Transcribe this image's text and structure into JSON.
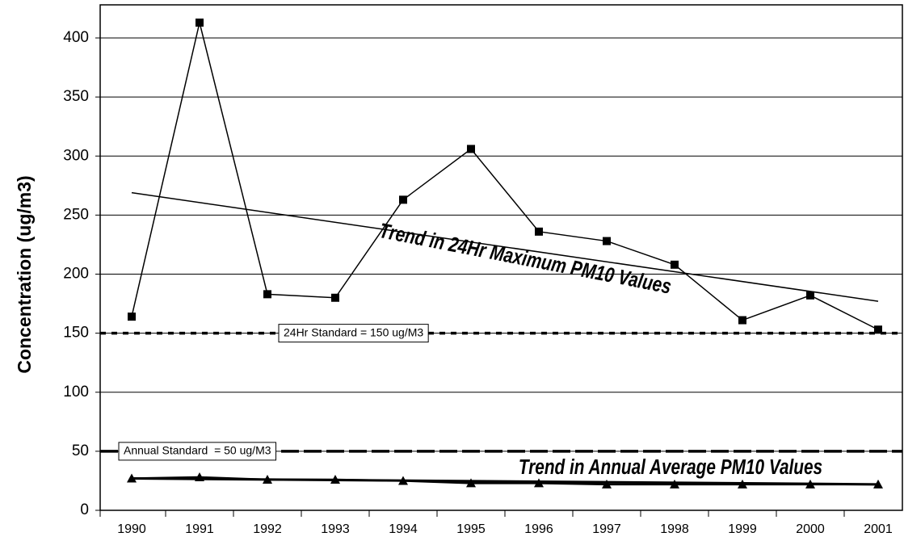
{
  "chart_data": {
    "type": "line",
    "y_label": "Concentration (ug/m3)",
    "categories": [
      "1990",
      "1991",
      "1992",
      "1993",
      "1994",
      "1995",
      "1996",
      "1997",
      "1998",
      "1999",
      "2000",
      "2001"
    ],
    "series": [
      {
        "color": "#000000",
        "marker": "square",
        "values": [
          164,
          413,
          183,
          180,
          263,
          306,
          236,
          228,
          208,
          161,
          182,
          153
        ]
      },
      {
        "color": "#000000",
        "marker": "triangle",
        "values": [
          27,
          28,
          26,
          26,
          25,
          23,
          23,
          22,
          22,
          22,
          22,
          22
        ]
      }
    ],
    "trends": [
      {
        "start": 269,
        "end": 177,
        "label": "Trend in 24Hr Maximum PM10 Values"
      },
      {
        "start": 27,
        "end": 22,
        "label": "Trend in Annual Average PM10 Values"
      }
    ],
    "reference_lines": [
      {
        "value": 150,
        "style": "dotted",
        "label": "24Hr Standard = 150 ug/M3"
      },
      {
        "value": 50,
        "style": "dashed",
        "label": "Annual Standard  = 50 ug/M3"
      }
    ],
    "ylim": [
      0,
      400
    ],
    "yticks": [
      0,
      50,
      100,
      150,
      200,
      250,
      300,
      350,
      400
    ],
    "grid": true
  }
}
